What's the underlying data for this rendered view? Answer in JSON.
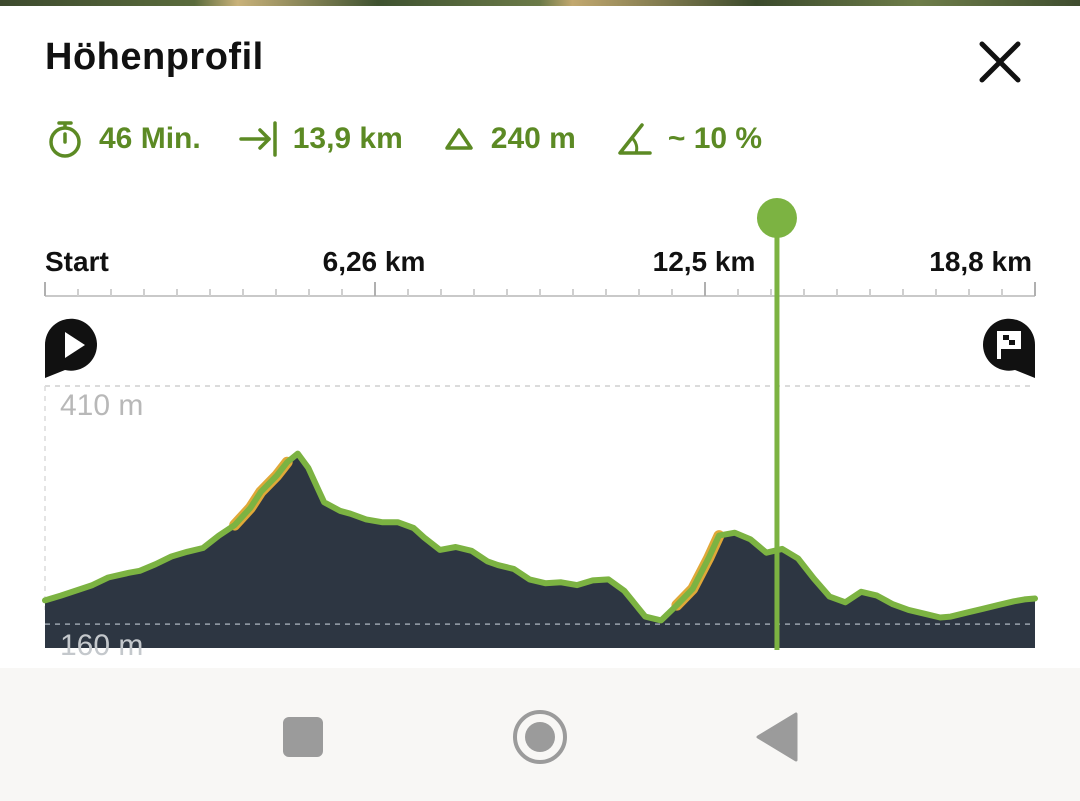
{
  "header": {
    "title": "Höhenprofil"
  },
  "stats": [
    {
      "icon": "stopwatch-icon",
      "value": "46 Min."
    },
    {
      "icon": "distance-arrow-icon",
      "value": "13,9 km"
    },
    {
      "icon": "ascent-triangle-icon",
      "value": "240 m"
    },
    {
      "icon": "slope-angle-icon",
      "value": "~ 10 %"
    }
  ],
  "colors": {
    "accent": "#7cb342",
    "stats_text": "#5c8a24",
    "profile_fill": "#2d3642",
    "steep_segment": "#e0a838"
  },
  "chart_data": {
    "type": "area",
    "title": "",
    "xlabel": "",
    "ylabel": "",
    "distance_labels": [
      "Start",
      "6,26 km",
      "12,5 km",
      "18,8 km"
    ],
    "y_labels": [
      "410 m",
      "160 m"
    ],
    "xlim": [
      0,
      18.8
    ],
    "ylim": [
      135,
      410
    ],
    "grid": "dashed lines at 410 m and 160 m",
    "cursor_km": 13.9,
    "x": [
      0,
      0.3,
      0.9,
      1.2,
      1.6,
      1.8,
      2.1,
      2.4,
      2.7,
      3.0,
      3.3,
      3.6,
      3.9,
      4.1,
      4.4,
      4.6,
      4.8,
      5.0,
      5.2,
      5.3,
      5.6,
      5.8,
      6.1,
      6.4,
      6.7,
      7.0,
      7.2,
      7.5,
      7.8,
      8.1,
      8.4,
      8.6,
      8.9,
      9.2,
      9.5,
      9.8,
      10.1,
      10.4,
      10.7,
      11.0,
      11.4,
      11.7,
      12.0,
      12.3,
      12.6,
      12.8,
      13.1,
      13.4,
      13.7,
      14.0,
      14.3,
      14.6,
      14.9,
      15.2,
      15.5,
      15.8,
      16.1,
      16.4,
      16.7,
      17.0,
      17.2,
      17.5,
      17.8,
      18.1,
      18.4,
      18.6,
      18.8
    ],
    "y": [
      185,
      190,
      201,
      209,
      214,
      216,
      223,
      231,
      236,
      240,
      253,
      264,
      282,
      299,
      316,
      330,
      339,
      324,
      300,
      288,
      279,
      276,
      270,
      267,
      267,
      261,
      251,
      238,
      241,
      237,
      226,
      222,
      218,
      207,
      203,
      204,
      201,
      206,
      207,
      195,
      168,
      164,
      180,
      197,
      229,
      253,
      256,
      249,
      235,
      239,
      229,
      208,
      189,
      183,
      194,
      190,
      181,
      175,
      171,
      167,
      168,
      172,
      176,
      180,
      184,
      186,
      187
    ]
  }
}
